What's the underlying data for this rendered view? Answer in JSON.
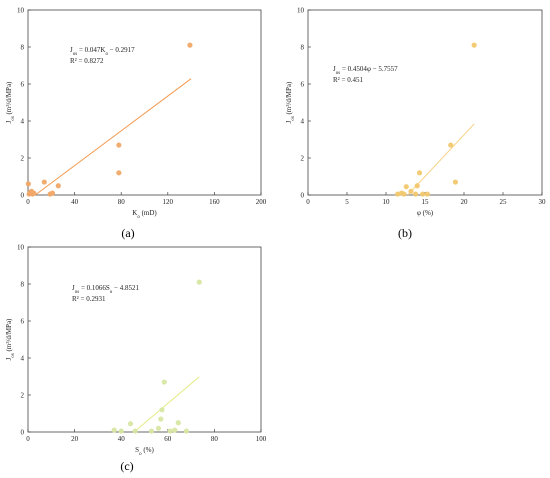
{
  "chart_data": [
    {
      "type": "scatter",
      "panel_label": "(a)",
      "xlabel": "K",
      "xlabel_sub": "o",
      "xlabel_unit": " (mD)",
      "ylabel": "J",
      "ylabel_sub": "os",
      "ylabel_unit": " (m³/d/MPa)",
      "xlim": [
        0,
        200
      ],
      "ylim": [
        0,
        10
      ],
      "xticks": [
        0,
        40,
        80,
        120,
        160,
        200
      ],
      "yticks": [
        0,
        2,
        4,
        6,
        8,
        10
      ],
      "equation": "J_os = 0.047K_o − 0.2917",
      "r2": "R² = 0.8272",
      "point_color": "#f0a868",
      "line_color": "#f39a4e",
      "points": [
        [
          0.3,
          0.6
        ],
        [
          1,
          0.05
        ],
        [
          2,
          0.15
        ],
        [
          3,
          0.2
        ],
        [
          4,
          0.05
        ],
        [
          5,
          0.1
        ],
        [
          14,
          0.7
        ],
        [
          19,
          0.05
        ],
        [
          21,
          0.1
        ],
        [
          26,
          0.5
        ],
        [
          78,
          2.7
        ],
        [
          78,
          1.2
        ],
        [
          139,
          8.1
        ]
      ],
      "fit": {
        "slope": 0.047,
        "intercept": -0.2917,
        "x_range": [
          6.2,
          140
        ]
      }
    },
    {
      "type": "scatter",
      "panel_label": "(b)",
      "xlabel": "φ (%)",
      "ylabel": "J",
      "ylabel_sub": "os",
      "ylabel_unit": " (m³/d/MPa)",
      "xlim": [
        0,
        30
      ],
      "ylim": [
        0,
        10
      ],
      "xticks": [
        0,
        5,
        10,
        15,
        20,
        25,
        30
      ],
      "yticks": [
        0,
        2,
        4,
        6,
        8,
        10
      ],
      "equation": "J_os = 0.4504φ − 5.7557",
      "r2": "R² = 0.451",
      "point_color": "#f2c86e",
      "line_color": "#f7d48a",
      "points": [
        [
          11.5,
          0.05
        ],
        [
          12,
          0.1
        ],
        [
          12.3,
          0.05
        ],
        [
          12.6,
          0.45
        ],
        [
          13.2,
          0.2
        ],
        [
          13.8,
          0.05
        ],
        [
          14,
          0.5
        ],
        [
          14.3,
          1.2
        ],
        [
          14.7,
          0.05
        ],
        [
          15.3,
          0.05
        ],
        [
          18.3,
          2.7
        ],
        [
          18.9,
          0.7
        ],
        [
          21.3,
          8.1
        ]
      ],
      "fit": {
        "slope": 0.4504,
        "intercept": -5.7557,
        "x_range": [
          12.78,
          21.3
        ]
      }
    },
    {
      "type": "scatter",
      "panel_label": "(c)",
      "xlabel": "S",
      "xlabel_sub": "o",
      "xlabel_unit": " (%)",
      "ylabel": "J",
      "ylabel_sub": "os",
      "ylabel_unit": " (m³/d/MPa)",
      "xlim": [
        0,
        100
      ],
      "ylim": [
        0,
        10
      ],
      "xticks": [
        0,
        20,
        40,
        60,
        80,
        100
      ],
      "yticks": [
        0,
        2,
        4,
        6,
        8,
        10
      ],
      "equation": "J_os = 0.1066S_o − 4.8521",
      "r2": "R² = 0.2931",
      "point_color": "#d7e6a2",
      "line_color": "#e4ec82",
      "points": [
        [
          37,
          0.1
        ],
        [
          40,
          0.05
        ],
        [
          44,
          0.45
        ],
        [
          46,
          0.05
        ],
        [
          53,
          0.05
        ],
        [
          56,
          0.2
        ],
        [
          57,
          0.7
        ],
        [
          57.5,
          1.2
        ],
        [
          58.5,
          2.7
        ],
        [
          61,
          0.05
        ],
        [
          63,
          0.1
        ],
        [
          64.5,
          0.5
        ],
        [
          68,
          0.05
        ],
        [
          73.5,
          8.1
        ]
      ],
      "fit": {
        "slope": 0.1066,
        "intercept": -4.8521,
        "x_range": [
          45.5,
          73.5
        ]
      }
    }
  ]
}
